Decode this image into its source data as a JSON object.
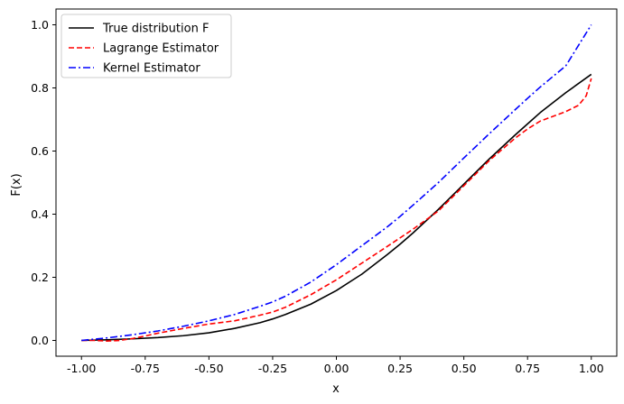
{
  "chart_data": {
    "type": "line",
    "xlabel": "x",
    "ylabel": "F(x)",
    "xlim": [
      -1.1,
      1.1
    ],
    "ylim": [
      -0.05,
      1.05
    ],
    "xticks": [
      "-1.00",
      "-0.75",
      "-0.50",
      "-0.25",
      "0.00",
      "0.25",
      "0.50",
      "0.75",
      "1.00"
    ],
    "xtick_values": [
      -1.0,
      -0.75,
      -0.5,
      -0.25,
      0.0,
      0.25,
      0.5,
      0.75,
      1.0
    ],
    "yticks": [
      "0.0",
      "0.2",
      "0.4",
      "0.6",
      "0.8",
      "1.0"
    ],
    "ytick_values": [
      0.0,
      0.2,
      0.4,
      0.6,
      0.8,
      1.0
    ],
    "grid": false,
    "legend_position": "top-left",
    "series": [
      {
        "name": "True distribution F",
        "color": "#000000",
        "style": "solid",
        "x": [
          -1.0,
          -0.9,
          -0.8,
          -0.7,
          -0.6,
          -0.5,
          -0.4,
          -0.3,
          -0.25,
          -0.2,
          -0.1,
          0.0,
          0.1,
          0.2,
          0.25,
          0.3,
          0.4,
          0.5,
          0.6,
          0.7,
          0.75,
          0.8,
          0.9,
          1.0
        ],
        "y": [
          0.0,
          0.002,
          0.005,
          0.009,
          0.015,
          0.024,
          0.038,
          0.056,
          0.068,
          0.082,
          0.115,
          0.158,
          0.21,
          0.272,
          0.305,
          0.34,
          0.415,
          0.495,
          0.575,
          0.65,
          0.686,
          0.722,
          0.785,
          0.843
        ]
      },
      {
        "name": "Lagrange Estimator",
        "color": "#ff0000",
        "style": "dashed",
        "x": [
          -1.0,
          -0.95,
          -0.9,
          -0.85,
          -0.8,
          -0.75,
          -0.7,
          -0.6,
          -0.5,
          -0.4,
          -0.3,
          -0.25,
          -0.2,
          -0.1,
          0.0,
          0.1,
          0.2,
          0.25,
          0.3,
          0.4,
          0.5,
          0.6,
          0.7,
          0.75,
          0.8,
          0.85,
          0.9,
          0.95,
          0.98,
          1.0
        ],
        "y": [
          0.0,
          0.0,
          -0.002,
          0.0,
          0.006,
          0.014,
          0.023,
          0.038,
          0.052,
          0.062,
          0.08,
          0.09,
          0.105,
          0.145,
          0.192,
          0.245,
          0.298,
          0.325,
          0.352,
          0.41,
          0.49,
          0.57,
          0.64,
          0.67,
          0.695,
          0.71,
          0.725,
          0.745,
          0.775,
          0.83
        ]
      },
      {
        "name": "Kernel Estimator",
        "color": "#0000ff",
        "style": "dashdot",
        "x": [
          -1.0,
          -0.9,
          -0.8,
          -0.7,
          -0.6,
          -0.5,
          -0.4,
          -0.3,
          -0.25,
          -0.2,
          -0.1,
          0.0,
          0.1,
          0.2,
          0.25,
          0.3,
          0.4,
          0.5,
          0.6,
          0.7,
          0.75,
          0.8,
          0.9,
          1.0
        ],
        "y": [
          0.0,
          0.008,
          0.018,
          0.03,
          0.045,
          0.062,
          0.082,
          0.108,
          0.122,
          0.14,
          0.185,
          0.24,
          0.3,
          0.36,
          0.393,
          0.428,
          0.5,
          0.578,
          0.655,
          0.73,
          0.767,
          0.803,
          0.87,
          1.0
        ]
      }
    ]
  }
}
